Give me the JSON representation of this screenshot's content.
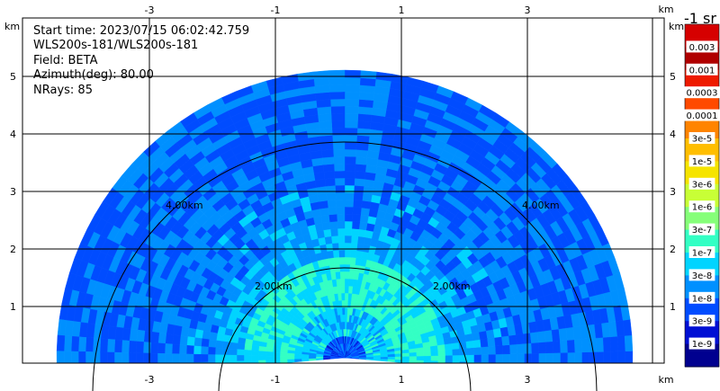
{
  "info": {
    "start_time": "Start time: 2023/07/15 06:02:42.759",
    "instrument": "WLS200s-181/WLS200s-181",
    "field": "Field: BETA",
    "azimuth": "Azimuth(deg): 80.00",
    "nrays": "NRays: 85"
  },
  "colorbar": {
    "title": "-1 sr",
    "labels": [
      "0.003",
      "0.001",
      "0.0003",
      "0.0001",
      "3e-5",
      "1e-5",
      "3e-6",
      "1e-6",
      "3e-7",
      "1e-7",
      "3e-8",
      "1e-8",
      "3e-9",
      "1e-9"
    ],
    "colors": [
      "#d60000",
      "#b00000",
      "#ee1b00",
      "#ff4a00",
      "#ff8400",
      "#ffbe00",
      "#f6e400",
      "#c8ff36",
      "#86ff79",
      "#33ffc4",
      "#00d4ff",
      "#0090ff",
      "#004cff",
      "#0010d4",
      "#00008f"
    ]
  },
  "chart_data": {
    "type": "heatmap",
    "title": "",
    "xlabel": "km",
    "ylabel": "km",
    "x_ticks": [
      "-3",
      "-1",
      "1",
      "3"
    ],
    "y_ticks": [
      "1",
      "2",
      "3",
      "4",
      "5"
    ],
    "xlim": [
      -4.0,
      4.0
    ],
    "ylim": [
      0.0,
      5.5
    ],
    "range_rings_km": [
      2.0,
      4.0
    ],
    "range_ring_labels": [
      "2.00km",
      "2.00km",
      "4.00km",
      "4.00km"
    ],
    "max_range_km": 5.0,
    "sweep_elevation_deg": [
      -5,
      185
    ],
    "field": "BETA",
    "units": "sr-1",
    "nrays": 85,
    "approx_value_by_range": [
      {
        "range_km": 0.2,
        "value": "3e-8"
      },
      {
        "range_km": 1.0,
        "value": "1e-7"
      },
      {
        "range_km": 2.0,
        "value": "3e-8"
      },
      {
        "range_km": 3.0,
        "value": "1e-8"
      },
      {
        "range_km": 4.5,
        "value": "1e-8"
      }
    ]
  }
}
